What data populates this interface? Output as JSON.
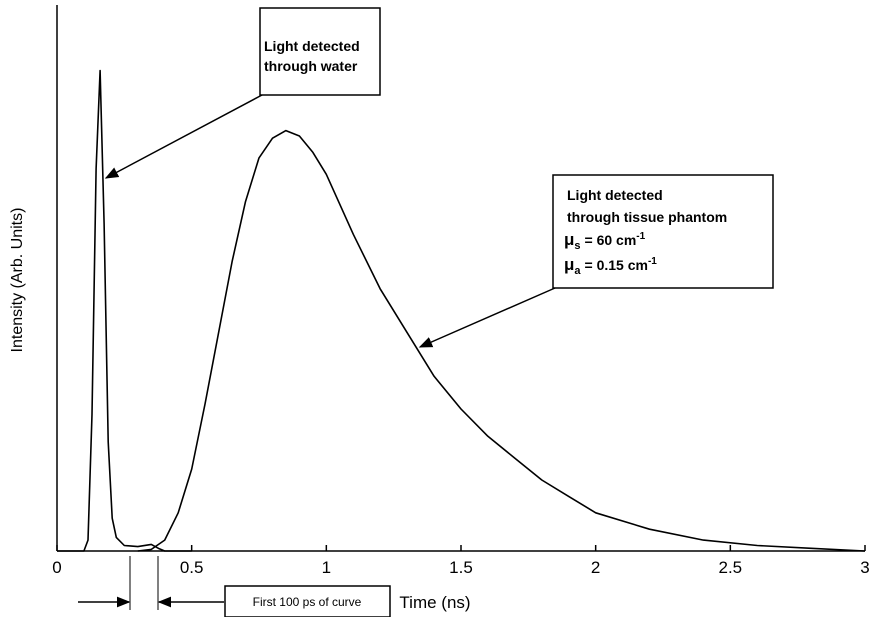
{
  "chart_data": {
    "type": "line",
    "xlabel": "Time (ns)",
    "ylabel": "Intensity (Arb. Units)",
    "xlim": [
      0,
      3
    ],
    "xticks": [
      0,
      0.5,
      1,
      1.5,
      2,
      2.5,
      3
    ],
    "ylim": [
      0,
      1
    ],
    "series": [
      {
        "color": "#000000",
        "x": [
          0,
          0.1,
          0.115,
          0.13,
          0.145,
          0.16,
          0.175,
          0.19,
          0.205,
          0.22,
          0.25,
          0.3,
          0.35,
          0.38,
          0.4,
          0.5
        ],
        "values": [
          0,
          0,
          0.02,
          0.25,
          0.7,
          0.88,
          0.6,
          0.2,
          0.06,
          0.025,
          0.01,
          0.008,
          0.012,
          0.004,
          0,
          0
        ]
      },
      {
        "color": "#000000",
        "x": [
          0.3,
          0.35,
          0.4,
          0.45,
          0.5,
          0.55,
          0.6,
          0.65,
          0.7,
          0.75,
          0.8,
          0.85,
          0.9,
          0.95,
          1.0,
          1.1,
          1.2,
          1.3,
          1.4,
          1.5,
          1.6,
          1.7,
          1.8,
          1.9,
          2.0,
          2.2,
          2.4,
          2.6,
          2.8,
          3.0
        ],
        "values": [
          0,
          0.003,
          0.02,
          0.07,
          0.15,
          0.27,
          0.4,
          0.53,
          0.64,
          0.72,
          0.756,
          0.77,
          0.76,
          0.73,
          0.69,
          0.58,
          0.48,
          0.4,
          0.32,
          0.26,
          0.21,
          0.17,
          0.13,
          0.1,
          0.07,
          0.04,
          0.02,
          0.01,
          0.005,
          0
        ]
      }
    ],
    "annotations": {
      "water": {
        "lines": [
          "Light detected",
          "through water"
        ]
      },
      "tissue": {
        "lines": [
          "Light detected",
          "through tissue phantom"
        ],
        "params": [
          {
            "symbol": "μ",
            "sub": "s",
            "text": "= 60 cm",
            "sup": "-1"
          },
          {
            "symbol": "μ",
            "sub": "a",
            "text": "= 0.15 cm",
            "sup": "-1"
          }
        ]
      },
      "first": {
        "text": "First 100 ps of curve"
      }
    }
  }
}
